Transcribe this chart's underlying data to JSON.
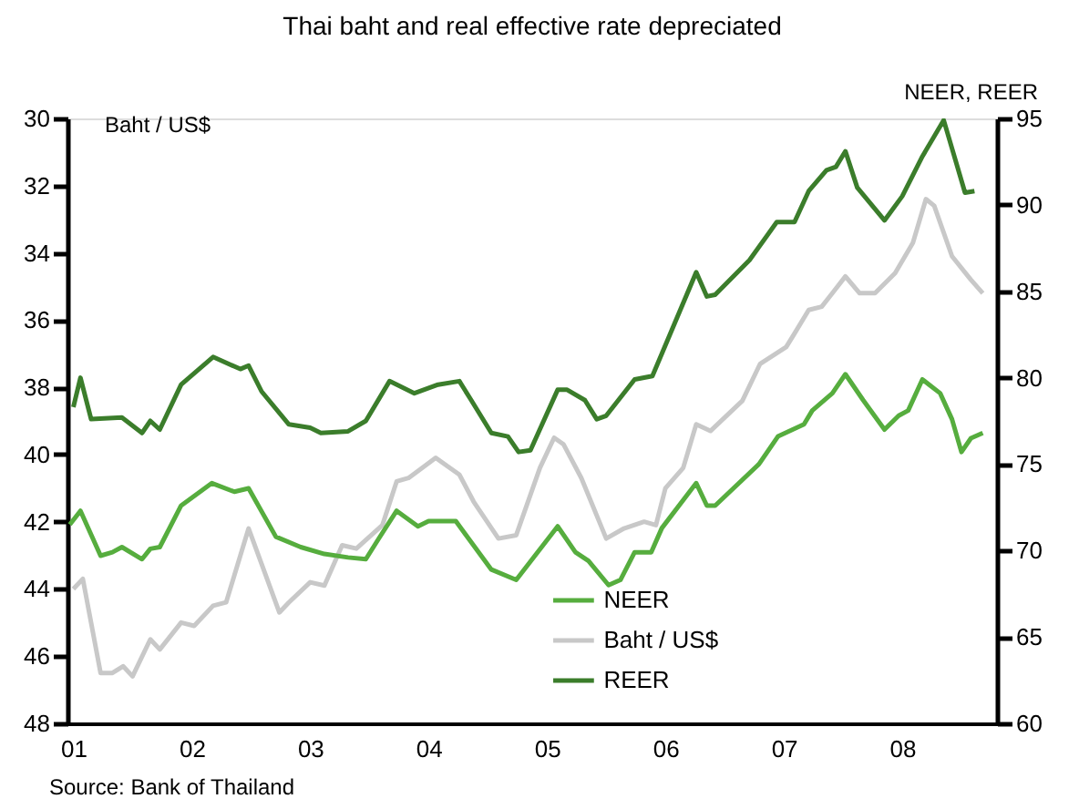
{
  "chart_data": {
    "type": "line",
    "title": "Thai baht and real effective rate depreciated",
    "ylabel": "Baht / US$",
    "y2label": "NEER, REER",
    "xlim": [
      2000.95,
      2008.8
    ],
    "xticks": [
      {
        "value": 2001,
        "label": "01"
      },
      {
        "value": 2002,
        "label": "02"
      },
      {
        "value": 2003,
        "label": "03"
      },
      {
        "value": 2004,
        "label": "04"
      },
      {
        "value": 2005,
        "label": "05"
      },
      {
        "value": 2006,
        "label": "06"
      },
      {
        "value": 2007,
        "label": "07"
      },
      {
        "value": 2008,
        "label": "08"
      }
    ],
    "ylim": [
      48,
      30
    ],
    "yticks": [
      30,
      32,
      34,
      36,
      38,
      40,
      42,
      44,
      46,
      48
    ],
    "y2lim": [
      60,
      95
    ],
    "y2ticks": [
      60,
      65,
      70,
      75,
      80,
      85,
      90,
      95
    ],
    "grid": false,
    "legend": "bottom",
    "line_style": "solid",
    "marker": "none",
    "annotations": [
      "Source: Bank of Thailand"
    ],
    "series": [
      {
        "name": "NEER",
        "color": "#56ad3e",
        "axis": "y2",
        "x": [
          2000.97,
          2001.06,
          2001.23,
          2001.33,
          2001.41,
          2001.58,
          2001.65,
          2001.73,
          2001.91,
          2002.17,
          2002.36,
          2002.48,
          2002.71,
          2002.92,
          2003.12,
          2003.32,
          2003.47,
          2003.58,
          2003.73,
          2003.91,
          2004.0,
          2004.23,
          2004.53,
          2004.74,
          2005.09,
          2005.24,
          2005.35,
          2005.52,
          2005.62,
          2005.74,
          2005.88,
          2005.97,
          2006.26,
          2006.35,
          2006.42,
          2006.79,
          2006.95,
          2007.17,
          2007.24,
          2007.41,
          2007.52,
          2007.67,
          2007.85,
          2007.97,
          2008.05,
          2008.17,
          2008.32,
          2008.42,
          2008.5,
          2008.58,
          2008.68
        ],
        "values": [
          71.5,
          72.3,
          69.7,
          69.9,
          70.2,
          69.5,
          70.1,
          70.2,
          72.6,
          73.9,
          73.4,
          73.6,
          70.8,
          70.2,
          69.8,
          69.6,
          69.5,
          70.7,
          72.3,
          71.4,
          71.7,
          71.7,
          68.9,
          68.3,
          71.4,
          69.9,
          69.4,
          68.0,
          68.3,
          69.9,
          69.9,
          71.3,
          73.9,
          72.6,
          72.6,
          75.0,
          76.6,
          77.3,
          78.1,
          79.1,
          80.2,
          78.7,
          77.0,
          77.8,
          78.1,
          79.9,
          79.1,
          77.6,
          75.7,
          76.5,
          76.8
        ]
      },
      {
        "name": "Baht / US$",
        "color": "#c8c8c8",
        "axis": "y",
        "x": [
          2001.0,
          2001.08,
          2001.23,
          2001.33,
          2001.42,
          2001.5,
          2001.65,
          2001.73,
          2001.91,
          2002.02,
          2002.18,
          2002.29,
          2002.48,
          2002.74,
          2002.82,
          2003.0,
          2003.12,
          2003.27,
          2003.39,
          2003.61,
          2003.73,
          2003.83,
          2004.06,
          2004.26,
          2004.38,
          2004.59,
          2004.74,
          2004.94,
          2005.06,
          2005.14,
          2005.29,
          2005.5,
          2005.65,
          2005.82,
          2005.92,
          2006.0,
          2006.15,
          2006.26,
          2006.38,
          2006.65,
          2006.8,
          2007.02,
          2007.09,
          2007.21,
          2007.32,
          2007.41,
          2007.52,
          2007.64,
          2007.77,
          2007.94,
          2008.09,
          2008.2,
          2008.27,
          2008.42,
          2008.58,
          2008.68
        ],
        "values": [
          44.0,
          43.7,
          46.5,
          46.5,
          46.3,
          46.6,
          45.5,
          45.8,
          45.0,
          45.1,
          44.5,
          44.4,
          42.2,
          44.7,
          44.4,
          43.8,
          43.9,
          42.7,
          42.8,
          42.1,
          40.8,
          40.7,
          40.1,
          40.6,
          41.4,
          42.5,
          42.4,
          40.4,
          39.5,
          39.7,
          40.7,
          42.5,
          42.2,
          42.0,
          42.1,
          41.0,
          40.4,
          39.1,
          39.3,
          38.4,
          37.3,
          36.8,
          36.4,
          35.7,
          35.6,
          35.2,
          34.7,
          35.2,
          35.2,
          34.6,
          33.7,
          32.4,
          32.6,
          34.1,
          34.8,
          35.2
        ]
      },
      {
        "name": "REER",
        "color": "#3b7d2b",
        "axis": "y2",
        "x": [
          2001.0,
          2001.06,
          2001.15,
          2001.41,
          2001.58,
          2001.65,
          2001.73,
          2001.91,
          2002.18,
          2002.41,
          2002.48,
          2002.59,
          2002.82,
          2003.0,
          2003.09,
          2003.32,
          2003.47,
          2003.67,
          2003.88,
          2004.08,
          2004.26,
          2004.36,
          2004.53,
          2004.67,
          2004.76,
          2004.86,
          2005.09,
          2005.17,
          2005.32,
          2005.42,
          2005.5,
          2005.74,
          2005.89,
          2006.26,
          2006.35,
          2006.42,
          2006.71,
          2006.94,
          2007.09,
          2007.21,
          2007.36,
          2007.44,
          2007.52,
          2007.62,
          2007.85,
          2008.0,
          2008.17,
          2008.35,
          2008.53,
          2008.61
        ],
        "values": [
          78.3,
          80.0,
          77.6,
          77.7,
          76.8,
          77.5,
          77.0,
          79.6,
          81.2,
          80.5,
          80.7,
          79.2,
          77.3,
          77.1,
          76.8,
          76.9,
          77.5,
          79.8,
          79.1,
          79.6,
          79.8,
          78.7,
          76.8,
          76.6,
          75.7,
          75.8,
          79.3,
          79.3,
          78.7,
          77.6,
          77.8,
          79.9,
          80.1,
          86.1,
          84.7,
          84.8,
          86.8,
          89.0,
          89.0,
          90.8,
          92.0,
          92.2,
          93.1,
          91.0,
          89.1,
          90.5,
          92.8,
          94.9,
          90.7,
          90.8
        ]
      }
    ]
  }
}
